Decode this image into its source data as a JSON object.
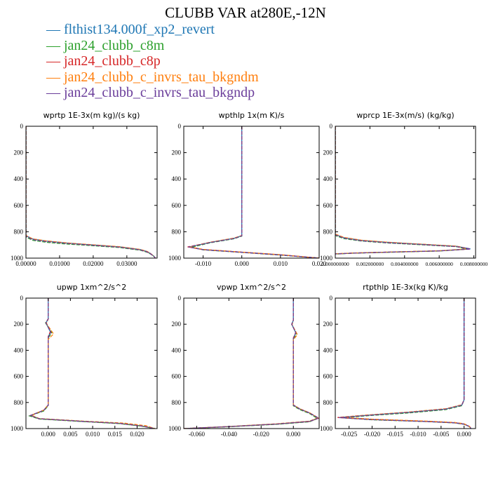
{
  "title": "CLUBB VAR at280E,-12N",
  "legend": [
    {
      "label": "flthist134.000f_xp2_revert",
      "color": "#1f77b4"
    },
    {
      "label": "jan24_clubb_c8m",
      "color": "#2ca02c"
    },
    {
      "label": "jan24_clubb_c8p",
      "color": "#d62728"
    },
    {
      "label": "jan24_clubb_c_invrs_tau_bkgndm",
      "color": "#ff7f0e"
    },
    {
      "label": "jan24_clubb_c_invrs_tau_bkgndp",
      "color": "#6a3d9a"
    }
  ],
  "chart_data": [
    {
      "type": "line",
      "title": "wprtp  1E-3x(m kg)/(s kg)",
      "xlim": [
        0,
        0.039
      ],
      "ylim": [
        1000,
        0
      ],
      "xticks": [
        0.0,
        0.01,
        0.02,
        0.03
      ],
      "xtick_labels": [
        "0.00000",
        "0.01000",
        "0.02000",
        "0.03000"
      ],
      "yticks": [
        0,
        200,
        400,
        600,
        800,
        1000
      ],
      "series": [
        {
          "color": "#1f77b4",
          "x": [
            0,
            0,
            0,
            0.002,
            0.006,
            0.012,
            0.02,
            0.028,
            0.034,
            0.036,
            0.037,
            0.038,
            0.0385
          ],
          "y": [
            0,
            800,
            830,
            855,
            870,
            885,
            900,
            915,
            935,
            950,
            965,
            985,
            1000
          ]
        },
        {
          "color": "#2ca02c",
          "x": [
            0,
            0,
            0,
            0.002,
            0.006,
            0.012,
            0.02,
            0.028,
            0.034,
            0.036,
            0.037,
            0.038,
            0.0385
          ],
          "y": [
            0,
            800,
            840,
            865,
            880,
            893,
            906,
            920,
            940,
            955,
            968,
            985,
            1000
          ]
        },
        {
          "color": "#d62728",
          "x": [
            0,
            0,
            0,
            0.002,
            0.006,
            0.012,
            0.02,
            0.028,
            0.034,
            0.036,
            0.037,
            0.038,
            0.0385
          ],
          "y": [
            0,
            800,
            832,
            858,
            873,
            887,
            902,
            917,
            937,
            952,
            966,
            985,
            1000
          ]
        },
        {
          "color": "#ff7f0e",
          "x": [
            0,
            0,
            0,
            0.002,
            0.006,
            0.012,
            0.02,
            0.028,
            0.034,
            0.036,
            0.037,
            0.038,
            0.0385
          ],
          "y": [
            0,
            800,
            828,
            854,
            869,
            884,
            899,
            914,
            934,
            949,
            964,
            985,
            1000
          ]
        },
        {
          "color": "#6a3d9a",
          "x": [
            0,
            0,
            0,
            0.002,
            0.006,
            0.012,
            0.02,
            0.028,
            0.034,
            0.036,
            0.037,
            0.038,
            0.0385
          ],
          "y": [
            0,
            800,
            833,
            859,
            874,
            888,
            902,
            917,
            937,
            952,
            966,
            985,
            1000
          ]
        }
      ]
    },
    {
      "type": "line",
      "title": "wpthlp  1x(m K)/s",
      "xlim": [
        -0.015,
        0.02
      ],
      "ylim": [
        1000,
        0
      ],
      "xticks": [
        -0.01,
        0.0,
        0.01,
        0.02
      ],
      "xtick_labels": [
        "-0.010",
        "0.000",
        "0.010",
        "0.020"
      ],
      "yticks": [
        0,
        200,
        400,
        600,
        800,
        1000
      ],
      "series": [
        {
          "color": "#1f77b4",
          "x": [
            0,
            0,
            0,
            -0.002,
            -0.008,
            -0.0135,
            -0.01,
            0,
            0.01,
            0.02
          ],
          "y": [
            0,
            800,
            830,
            850,
            880,
            915,
            935,
            955,
            975,
            1000
          ]
        },
        {
          "color": "#2ca02c",
          "x": [
            0,
            0,
            0,
            -0.002,
            -0.008,
            -0.013,
            -0.01,
            0,
            0.01,
            0.02
          ],
          "y": [
            0,
            800,
            833,
            853,
            883,
            917,
            937,
            957,
            977,
            1000
          ]
        },
        {
          "color": "#d62728",
          "x": [
            0,
            0,
            0,
            -0.002,
            -0.008,
            -0.014,
            -0.01,
            0,
            0.01,
            0.02
          ],
          "y": [
            0,
            800,
            830,
            850,
            880,
            915,
            935,
            955,
            975,
            1000
          ]
        },
        {
          "color": "#ff7f0e",
          "x": [
            0,
            0,
            0,
            -0.002,
            -0.008,
            -0.0135,
            -0.01,
            0,
            0.01,
            0.02
          ],
          "y": [
            0,
            800,
            828,
            848,
            878,
            914,
            934,
            954,
            974,
            1000
          ]
        },
        {
          "color": "#6a3d9a",
          "x": [
            0,
            0,
            0,
            -0.002,
            -0.008,
            -0.0138,
            -0.01,
            0,
            0.01,
            0.02
          ],
          "y": [
            0,
            800,
            831,
            851,
            881,
            916,
            936,
            956,
            976,
            1000
          ]
        }
      ]
    },
    {
      "type": "line",
      "title": "wprcp  1E-3x(m/s) (kg/kg)",
      "xlim": [
        0,
        0.0081
      ],
      "ylim": [
        1000,
        0
      ],
      "xticks": [
        0.0,
        0.002,
        0.004,
        0.006,
        0.008
      ],
      "xtick_labels": [
        "0.000000000",
        "0.002000000",
        "0.004000000",
        "0.006000000",
        "0.008000000"
      ],
      "yticks": [
        0,
        200,
        400,
        600,
        800,
        1000
      ],
      "series": [
        {
          "color": "#1f77b4",
          "x": [
            0,
            0,
            0,
            0.0005,
            0.0015,
            0.003,
            0.005,
            0.007,
            0.0078,
            0.006,
            0.003,
            0.001,
            0
          ],
          "y": [
            0,
            800,
            820,
            845,
            865,
            880,
            895,
            910,
            930,
            945,
            955,
            962,
            968
          ]
        },
        {
          "color": "#2ca02c",
          "x": [
            0,
            0,
            0,
            0.0005,
            0.0015,
            0.003,
            0.005,
            0.007,
            0.0076,
            0.006,
            0.003,
            0.001,
            0
          ],
          "y": [
            0,
            800,
            828,
            852,
            870,
            885,
            899,
            913,
            932,
            946,
            956,
            963,
            969
          ]
        },
        {
          "color": "#d62728",
          "x": [
            0,
            0,
            0,
            0.0005,
            0.0015,
            0.003,
            0.005,
            0.007,
            0.0078,
            0.006,
            0.003,
            0.001,
            0
          ],
          "y": [
            0,
            800,
            822,
            847,
            867,
            882,
            897,
            912,
            931,
            945,
            955,
            962,
            968
          ]
        },
        {
          "color": "#ff7f0e",
          "x": [
            0,
            0,
            0,
            0.0005,
            0.0015,
            0.003,
            0.005,
            0.007,
            0.0077,
            0.006,
            0.003,
            0.001,
            0
          ],
          "y": [
            0,
            800,
            818,
            843,
            864,
            879,
            894,
            909,
            929,
            944,
            954,
            961,
            967
          ]
        },
        {
          "color": "#6a3d9a",
          "x": [
            0,
            0,
            0,
            0.0005,
            0.0015,
            0.003,
            0.005,
            0.007,
            0.0078,
            0.006,
            0.003,
            0.001,
            0
          ],
          "y": [
            0,
            800,
            823,
            848,
            868,
            883,
            897,
            912,
            931,
            945,
            955,
            962,
            968
          ]
        }
      ]
    },
    {
      "type": "line",
      "title": "upwp  1xm^2/s^2",
      "xlim": [
        -0.005,
        0.0245
      ],
      "ylim": [
        1000,
        0
      ],
      "xticks": [
        0.0,
        0.005,
        0.01,
        0.015,
        0.02
      ],
      "xtick_labels": [
        "0.000",
        "0.005",
        "0.010",
        "0.015",
        "0.020"
      ],
      "yticks": [
        0,
        200,
        400,
        600,
        800,
        1000
      ],
      "series": [
        {
          "color": "#1f77b4",
          "x": [
            0,
            0,
            -0.0005,
            0.0005,
            0,
            0,
            -0.001,
            -0.004,
            -0.002,
            0.008,
            0.016,
            0.021,
            0.024
          ],
          "y": [
            0,
            160,
            190,
            260,
            300,
            820,
            860,
            900,
            925,
            945,
            960,
            980,
            1000
          ]
        },
        {
          "color": "#2ca02c",
          "x": [
            0,
            0,
            -0.0006,
            0.0008,
            0,
            0,
            -0.001,
            -0.0042,
            -0.002,
            0.008,
            0.016,
            0.021,
            0.024
          ],
          "y": [
            0,
            160,
            190,
            265,
            305,
            825,
            865,
            903,
            927,
            947,
            962,
            981,
            1000
          ]
        },
        {
          "color": "#d62728",
          "x": [
            0,
            0,
            -0.0005,
            0.0005,
            0,
            0,
            -0.001,
            -0.004,
            -0.002,
            0.008,
            0.016,
            0.021,
            0.024
          ],
          "y": [
            0,
            160,
            185,
            255,
            295,
            820,
            860,
            900,
            925,
            945,
            960,
            980,
            1000
          ]
        },
        {
          "color": "#ff7f0e",
          "x": [
            0,
            0,
            -0.0004,
            0.0012,
            0,
            0,
            -0.001,
            -0.0038,
            -0.002,
            0.008,
            0.017,
            0.022,
            0.024
          ],
          "y": [
            0,
            160,
            195,
            275,
            315,
            818,
            858,
            898,
            923,
            943,
            958,
            978,
            1000
          ]
        },
        {
          "color": "#6a3d9a",
          "x": [
            0,
            0,
            -0.0005,
            0.0006,
            0,
            0,
            -0.001,
            -0.004,
            -0.002,
            0.008,
            0.016,
            0.021,
            0.024
          ],
          "y": [
            0,
            160,
            190,
            262,
            300,
            820,
            860,
            900,
            925,
            945,
            960,
            980,
            1000
          ]
        }
      ]
    },
    {
      "type": "line",
      "title": "vpwp  1xm^2/s^2",
      "xlim": [
        -0.068,
        0.016
      ],
      "ylim": [
        1000,
        0
      ],
      "xticks": [
        -0.06,
        -0.04,
        -0.02,
        0.0
      ],
      "xtick_labels": [
        "-0.060",
        "-0.040",
        "-0.020",
        "0.000"
      ],
      "yticks": [
        0,
        200,
        400,
        600,
        800,
        1000
      ],
      "series": [
        {
          "color": "#1f77b4",
          "x": [
            0,
            0,
            -0.001,
            0.0015,
            0,
            0,
            0.004,
            0.01,
            0.0155,
            0.01,
            -0.01,
            -0.04,
            -0.068
          ],
          "y": [
            0,
            170,
            200,
            265,
            310,
            820,
            850,
            880,
            920,
            945,
            965,
            985,
            1000
          ]
        },
        {
          "color": "#2ca02c",
          "x": [
            0,
            0,
            -0.001,
            0.002,
            0,
            0,
            0.004,
            0.01,
            0.015,
            0.01,
            -0.01,
            -0.04,
            -0.068
          ],
          "y": [
            0,
            170,
            200,
            270,
            315,
            825,
            855,
            884,
            923,
            948,
            967,
            986,
            1000
          ]
        },
        {
          "color": "#d62728",
          "x": [
            0,
            0,
            -0.001,
            0.0015,
            0,
            0,
            0.004,
            0.01,
            0.0158,
            0.01,
            -0.01,
            -0.04,
            -0.068
          ],
          "y": [
            0,
            170,
            200,
            262,
            305,
            820,
            850,
            880,
            920,
            945,
            965,
            985,
            1000
          ]
        },
        {
          "color": "#ff7f0e",
          "x": [
            0,
            0,
            -0.0008,
            0.0025,
            0,
            0,
            0.004,
            0.01,
            0.0152,
            0.01,
            -0.01,
            -0.04,
            -0.068
          ],
          "y": [
            0,
            170,
            205,
            280,
            320,
            818,
            848,
            878,
            918,
            943,
            963,
            984,
            1000
          ]
        },
        {
          "color": "#6a3d9a",
          "x": [
            0,
            0,
            -0.001,
            0.0015,
            0,
            0,
            0.004,
            0.01,
            0.0156,
            0.01,
            -0.01,
            -0.04,
            -0.068
          ],
          "y": [
            0,
            170,
            200,
            266,
            310,
            820,
            850,
            880,
            920,
            945,
            965,
            985,
            1000
          ]
        }
      ]
    },
    {
      "type": "line",
      "title": "rtpthlp  1E-3x(kg K)/kg",
      "xlim": [
        -0.028,
        0.0025
      ],
      "ylim": [
        1000,
        0
      ],
      "xticks": [
        -0.025,
        -0.02,
        -0.015,
        -0.01,
        -0.005,
        0.0
      ],
      "xtick_labels": [
        "-0.025",
        "-0.020",
        "-0.015",
        "-0.010",
        "-0.005",
        "0.000"
      ],
      "yticks": [
        0,
        200,
        400,
        600,
        800,
        1000
      ],
      "series": [
        {
          "color": "#1f77b4",
          "x": [
            0,
            0,
            -0.0005,
            -0.004,
            -0.012,
            -0.02,
            -0.027,
            -0.02,
            -0.008,
            -0.002,
            0,
            0.0012,
            0.0015
          ],
          "y": [
            0,
            780,
            820,
            850,
            875,
            895,
            915,
            930,
            945,
            955,
            965,
            985,
            1000
          ]
        },
        {
          "color": "#2ca02c",
          "x": [
            0,
            0,
            -0.0005,
            -0.004,
            -0.012,
            -0.02,
            -0.0265,
            -0.02,
            -0.008,
            -0.002,
            0,
            0.0012,
            0.0015
          ],
          "y": [
            0,
            780,
            825,
            855,
            880,
            899,
            918,
            933,
            947,
            957,
            967,
            986,
            1000
          ]
        },
        {
          "color": "#d62728",
          "x": [
            0,
            0,
            -0.0005,
            -0.004,
            -0.012,
            -0.02,
            -0.0275,
            -0.02,
            -0.008,
            -0.002,
            0,
            0.0012,
            0.0015
          ],
          "y": [
            0,
            780,
            820,
            850,
            875,
            895,
            915,
            930,
            945,
            955,
            965,
            985,
            1000
          ]
        },
        {
          "color": "#ff7f0e",
          "x": [
            0,
            0,
            -0.0005,
            -0.004,
            -0.012,
            -0.02,
            -0.027,
            -0.02,
            -0.008,
            -0.002,
            0,
            0.0012,
            0.0015
          ],
          "y": [
            0,
            780,
            818,
            848,
            873,
            893,
            913,
            928,
            943,
            953,
            963,
            984,
            1000
          ]
        },
        {
          "color": "#6a3d9a",
          "x": [
            0,
            0,
            -0.0005,
            -0.004,
            -0.012,
            -0.02,
            -0.0272,
            -0.02,
            -0.008,
            -0.002,
            0,
            0.0012,
            0.0015
          ],
          "y": [
            0,
            780,
            821,
            851,
            876,
            896,
            916,
            931,
            946,
            956,
            966,
            985,
            1000
          ]
        }
      ]
    }
  ]
}
